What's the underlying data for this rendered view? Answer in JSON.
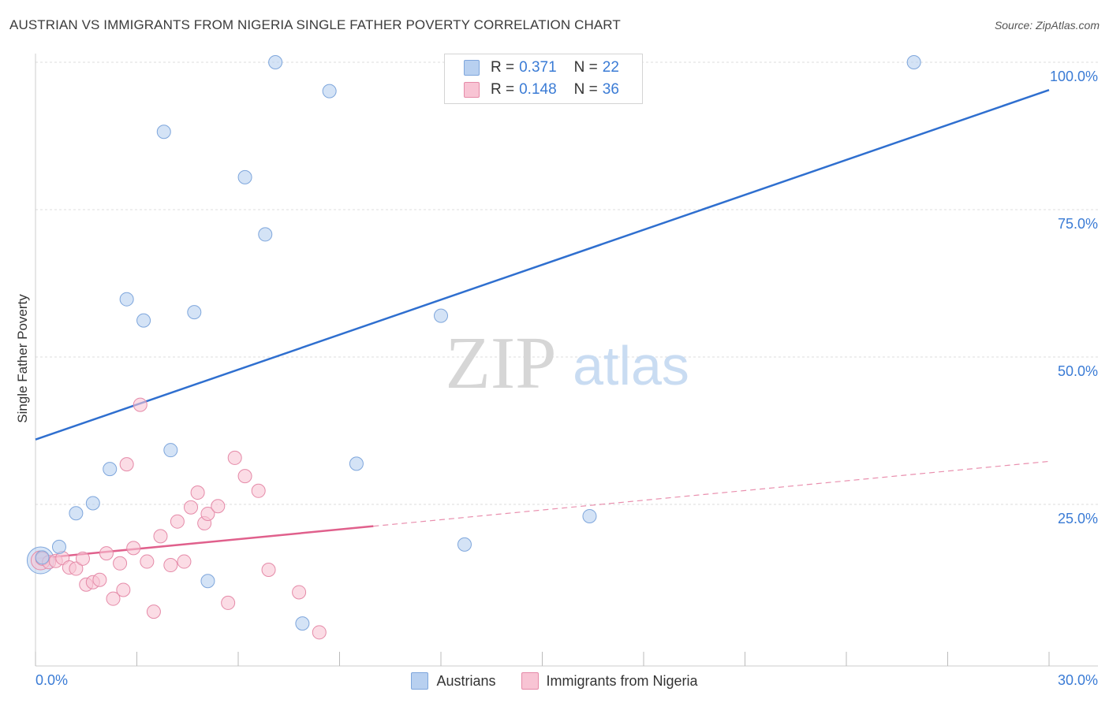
{
  "title": "AUSTRIAN VS IMMIGRANTS FROM NIGERIA SINGLE FATHER POVERTY CORRELATION CHART",
  "source": "Source: ZipAtlas.com",
  "watermark": {
    "zip": "ZIP",
    "atlas": "atlas"
  },
  "legend_top": [
    {
      "r_label": "R = ",
      "r_value": "0.371",
      "n_label": "N = ",
      "n_value": "22"
    },
    {
      "r_label": "R = ",
      "r_value": "0.148",
      "n_label": "N = ",
      "n_value": "36"
    }
  ],
  "legend_bottom": [
    "Austrians",
    "Immigrants from Nigeria"
  ],
  "colors": {
    "austrians_fill": "#b8d0f0",
    "austrians_stroke": "#7ea6dc",
    "austrians_line": "#2f6fcf",
    "nigeria_fill": "#f8c4d4",
    "nigeria_stroke": "#e58aa8",
    "nigeria_line": "#e0608c",
    "tick_label": "#3a7bd5",
    "grid": "#dddddd"
  },
  "chart_data": {
    "type": "scatter",
    "xlabel": "",
    "ylabel": "Single Father Poverty",
    "xlim": [
      0,
      30
    ],
    "ylim": [
      0,
      105
    ],
    "x_tick_labels": [
      "0.0%",
      "30.0%"
    ],
    "y_ticks": [
      25,
      50,
      75,
      100
    ],
    "y_tick_labels": [
      "25.0%",
      "50.0%",
      "75.0%",
      "100.0%"
    ],
    "grid": true,
    "series": [
      {
        "name": "Austrians",
        "points": [
          [
            0.2,
            16.0
          ],
          [
            0.7,
            17.8
          ],
          [
            1.2,
            23.5
          ],
          [
            1.7,
            25.2
          ],
          [
            2.2,
            31.0
          ],
          [
            2.7,
            59.8
          ],
          [
            3.2,
            56.2
          ],
          [
            3.8,
            88.2
          ],
          [
            4.0,
            34.2
          ],
          [
            4.7,
            57.6
          ],
          [
            5.1,
            12.0
          ],
          [
            6.2,
            80.5
          ],
          [
            6.8,
            70.8
          ],
          [
            7.1,
            100.0
          ],
          [
            7.9,
            4.8
          ],
          [
            8.7,
            95.1
          ],
          [
            9.5,
            31.9
          ],
          [
            12.0,
            57.0
          ],
          [
            12.7,
            18.2
          ],
          [
            16.4,
            23.0
          ],
          [
            26.0,
            100.0
          ]
        ],
        "big_point": [
          0.15,
          15.5
        ],
        "trend": {
          "x": [
            0,
            30
          ],
          "y": [
            36.0,
            95.3
          ]
        }
      },
      {
        "name": "Immigrants from Nigeria",
        "points": [
          [
            0.2,
            15.8
          ],
          [
            0.4,
            15.2
          ],
          [
            0.6,
            15.4
          ],
          [
            0.8,
            15.9
          ],
          [
            1.0,
            14.3
          ],
          [
            1.2,
            14.1
          ],
          [
            1.4,
            15.8
          ],
          [
            1.5,
            11.4
          ],
          [
            1.7,
            11.8
          ],
          [
            1.9,
            12.2
          ],
          [
            2.1,
            16.7
          ],
          [
            2.3,
            9.0
          ],
          [
            2.5,
            15.0
          ],
          [
            2.6,
            10.5
          ],
          [
            2.7,
            31.8
          ],
          [
            2.9,
            17.6
          ],
          [
            3.1,
            41.9
          ],
          [
            3.3,
            15.3
          ],
          [
            3.5,
            6.8
          ],
          [
            3.7,
            19.6
          ],
          [
            4.0,
            14.7
          ],
          [
            4.2,
            22.1
          ],
          [
            4.4,
            15.3
          ],
          [
            4.6,
            24.5
          ],
          [
            4.8,
            27.0
          ],
          [
            5.0,
            21.8
          ],
          [
            5.1,
            23.4
          ],
          [
            5.4,
            24.7
          ],
          [
            5.7,
            8.3
          ],
          [
            5.9,
            32.9
          ],
          [
            6.2,
            29.8
          ],
          [
            6.6,
            27.3
          ],
          [
            6.9,
            13.9
          ],
          [
            7.8,
            10.1
          ],
          [
            8.4,
            3.3
          ]
        ],
        "big_point": [
          0.15,
          15.5
        ],
        "trend_solid": {
          "x": [
            0,
            10
          ],
          "y": [
            15.8,
            21.3
          ]
        },
        "trend_dashed": {
          "x": [
            10,
            30
          ],
          "y": [
            21.3,
            32.3
          ]
        }
      }
    ]
  }
}
